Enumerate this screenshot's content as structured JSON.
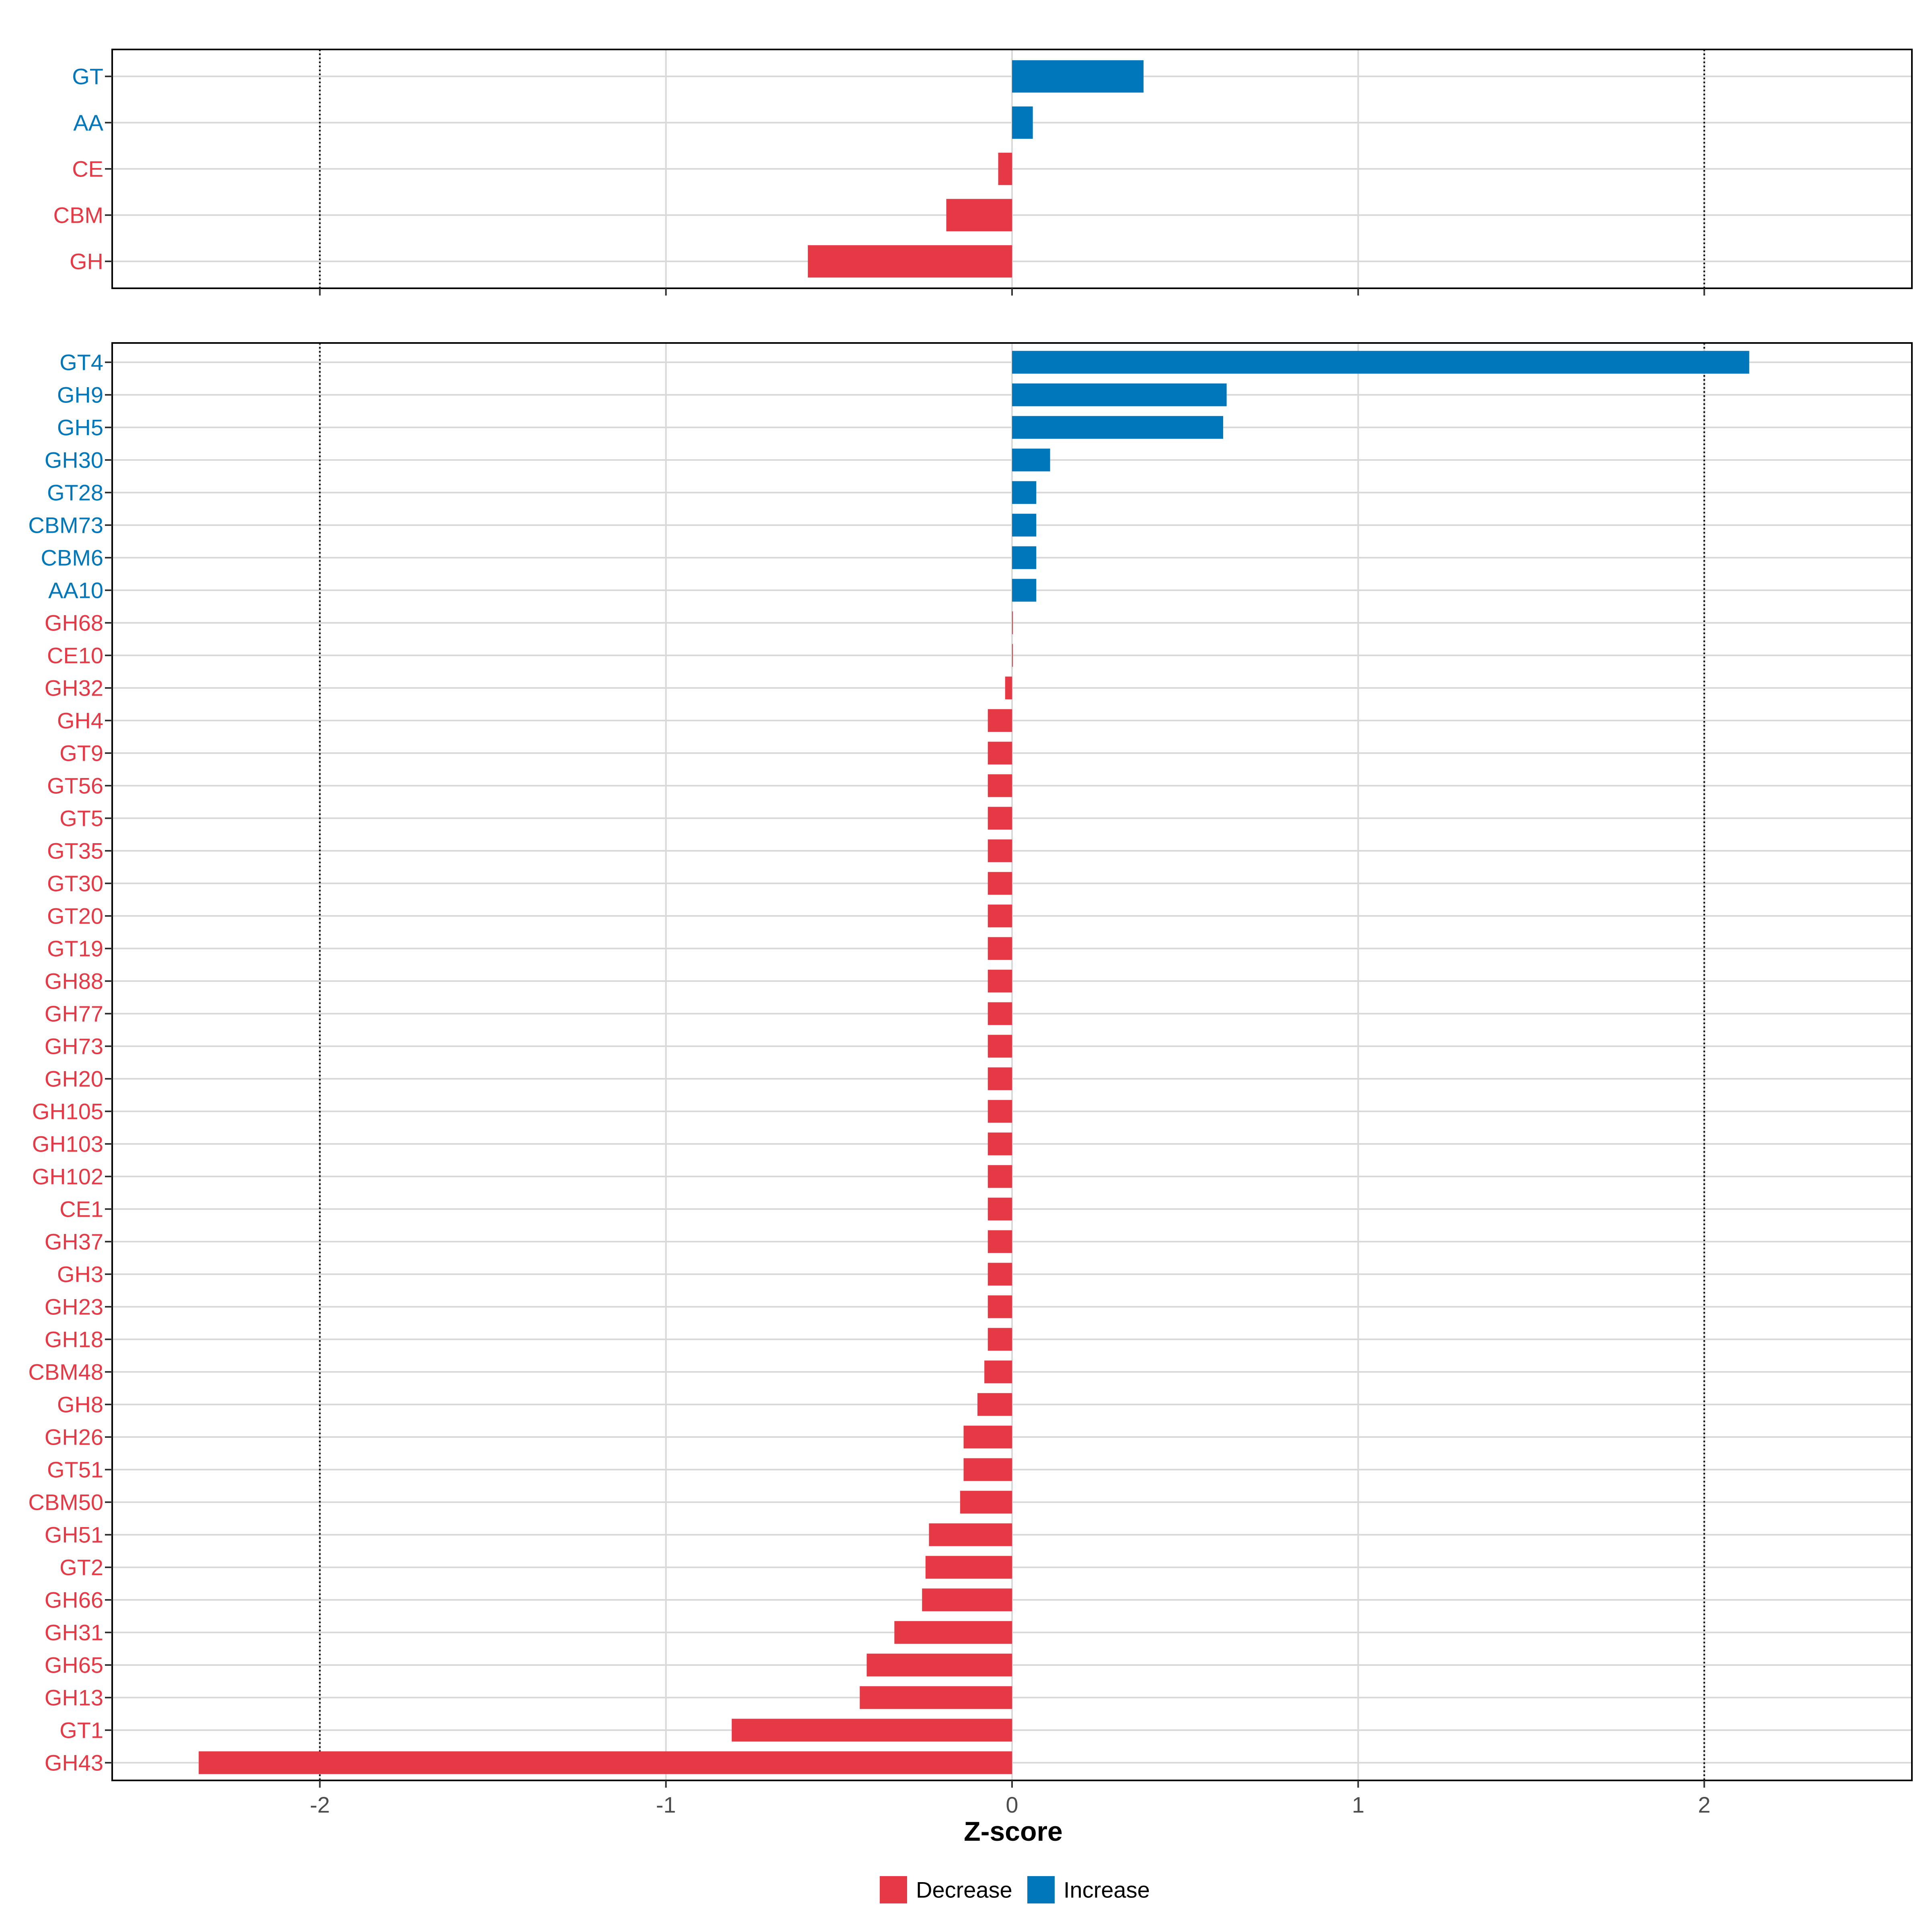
{
  "colors": {
    "increase": "#0077BB",
    "decrease": "#E63946",
    "grid": "#D9D9D9",
    "axis_text": "#4D4D4D",
    "panel_border": "#000000"
  },
  "chart_data": [
    {
      "type": "bar",
      "orientation": "horizontal",
      "panel": "top",
      "xlim": [
        -2.6,
        2.6
      ],
      "x_ticks": [
        -2,
        -1,
        0,
        1,
        2
      ],
      "reference_lines": [
        -2,
        2
      ],
      "categories": [
        "GT",
        "AA",
        "CE",
        "CBM",
        "GH"
      ],
      "values": [
        0.38,
        0.06,
        -0.04,
        -0.19,
        -0.59
      ],
      "direction": [
        "Increase",
        "Increase",
        "Decrease",
        "Decrease",
        "Decrease"
      ]
    },
    {
      "type": "bar",
      "orientation": "horizontal",
      "panel": "bottom",
      "xlim": [
        -2.6,
        2.6
      ],
      "x_ticks": [
        -2,
        -1,
        0,
        1,
        2
      ],
      "x_tick_labels": [
        "-2",
        "-1",
        "0",
        "1",
        "2"
      ],
      "reference_lines": [
        -2,
        2
      ],
      "xlabel": "Z-score",
      "categories": [
        "GT4",
        "GH9",
        "GH5",
        "GH30",
        "GT28",
        "CBM73",
        "CBM6",
        "AA10",
        "GH68",
        "CE10",
        "GH32",
        "GH4",
        "GT9",
        "GT56",
        "GT5",
        "GT35",
        "GT30",
        "GT20",
        "GT19",
        "GH88",
        "GH77",
        "GH73",
        "GH20",
        "GH105",
        "GH103",
        "GH102",
        "CE1",
        "GH37",
        "GH3",
        "GH23",
        "GH18",
        "CBM48",
        "GH8",
        "GH26",
        "GT51",
        "CBM50",
        "GH51",
        "GT2",
        "GH66",
        "GH31",
        "GH65",
        "GH13",
        "GT1",
        "GH43"
      ],
      "values": [
        2.13,
        0.62,
        0.61,
        0.11,
        0.07,
        0.07,
        0.07,
        0.07,
        0.0,
        0.0,
        -0.02,
        -0.07,
        -0.07,
        -0.07,
        -0.07,
        -0.07,
        -0.07,
        -0.07,
        -0.07,
        -0.07,
        -0.07,
        -0.07,
        -0.07,
        -0.07,
        -0.07,
        -0.07,
        -0.07,
        -0.07,
        -0.07,
        -0.07,
        -0.07,
        -0.08,
        -0.1,
        -0.14,
        -0.14,
        -0.15,
        -0.24,
        -0.25,
        -0.26,
        -0.34,
        -0.42,
        -0.44,
        -0.81,
        -2.35
      ],
      "direction": [
        "Increase",
        "Increase",
        "Increase",
        "Increase",
        "Increase",
        "Increase",
        "Increase",
        "Increase",
        "Decrease",
        "Decrease",
        "Decrease",
        "Decrease",
        "Decrease",
        "Decrease",
        "Decrease",
        "Decrease",
        "Decrease",
        "Decrease",
        "Decrease",
        "Decrease",
        "Decrease",
        "Decrease",
        "Decrease",
        "Decrease",
        "Decrease",
        "Decrease",
        "Decrease",
        "Decrease",
        "Decrease",
        "Decrease",
        "Decrease",
        "Decrease",
        "Decrease",
        "Decrease",
        "Decrease",
        "Decrease",
        "Decrease",
        "Decrease",
        "Decrease",
        "Decrease",
        "Decrease",
        "Decrease",
        "Decrease",
        "Decrease"
      ]
    }
  ],
  "legend": {
    "position": "bottom",
    "items": [
      {
        "label": "Decrease",
        "key": "decrease"
      },
      {
        "label": "Increase",
        "key": "increase"
      }
    ]
  }
}
